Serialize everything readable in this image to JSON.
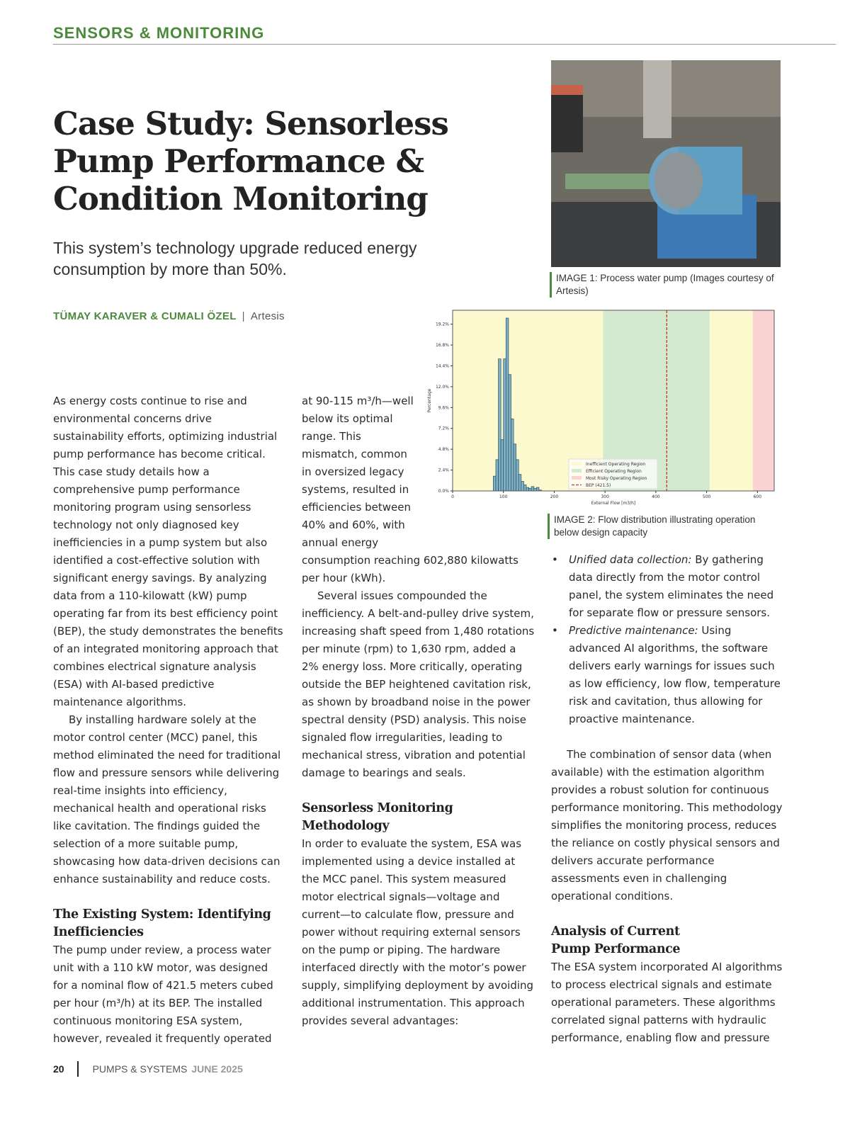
{
  "header": {
    "section": "SENSORS & MONITORING"
  },
  "article": {
    "title": "Case Study: Sensorless Pump Performance & Condition Monitoring",
    "subtitle": "This system’s technology upgrade reduced energy consumption by more than 50%.",
    "authors": "TÜMAY KARAVER & CUMALI ÖZEL",
    "separator": "|",
    "organization": "Artesis"
  },
  "image1": {
    "caption": "IMAGE 1: Process water pump (Images courtesy of Artesis)"
  },
  "image2": {
    "caption": "IMAGE 2: Flow distribution illustrating operation below design capacity"
  },
  "col1": {
    "p1": "As energy costs continue to rise and environmental concerns drive sustainability efforts, optimizing industrial pump performance has become critical. This case study details how a comprehensive pump performance monitoring program using sensorless technology not only diagnosed key inefficiencies in a pump system but also identified a cost-effective solution with significant energy savings. By analyzing data from a 110-kilowatt (kW) pump operating far from its best efficiency point (BEP), the study demonstrates the benefits of an integrated monitoring approach that combines electrical signature analysis (ESA) with AI-based predictive maintenance algorithms.",
    "p2": "By installing hardware solely at the motor control center (MCC) panel, this method eliminated the need for traditional flow and pressure sensors while delivering real-time insights into efficiency, mechanical health and operational risks like cavitation. The findings guided the selection of a more suitable pump, showcasing how data-driven decisions can enhance sustainability and reduce costs.",
    "h1": "The Existing System: Identifying Inefficiencies",
    "p3": "The pump under review, a process water unit with a 110 kW motor, was designed for a nominal flow of 421.5 meters cubed per hour (m³/h) at its BEP. The installed continuous monitoring ESA system, however, revealed it frequently operated"
  },
  "col2": {
    "p1": "at 90-115 m³/h—well below its optimal range. This mismatch, common in oversized legacy systems, resulted in efficiencies between 40% and 60%, with annual energy consumption reaching 602,880 kilowatts per hour (kWh).",
    "p2": "Several issues compounded the inefficiency. A belt-and-pulley drive system, increasing shaft speed from 1,480 rotations per minute (rpm) to 1,630 rpm, added a 2% energy loss. More critically, operating outside the BEP heightened cavitation risk, as shown by broadband noise in the power spectral density (PSD) analysis. This noise signaled flow irregularities, leading to mechanical stress, vibration and potential damage to bearings and seals.",
    "h1": "Sensorless Monitoring Methodology",
    "p3": "In order to evaluate the system, ESA was implemented using a device installed at the MCC panel. This system measured motor electrical signals—voltage and current—to calculate flow, pressure and power without requiring external sensors on the pump or piping. The hardware interfaced directly with the motor’s power supply, simplifying deployment by avoiding additional instrumentation. This approach provides several advantages:"
  },
  "col3": {
    "bullets": [
      {
        "term": "Unified data collection:",
        "text": " By gathering data directly from the motor control panel, the system eliminates the need for separate flow or pressure sensors."
      },
      {
        "term": "Predictive maintenance:",
        "text": " Using advanced AI algorithms, the software delivers early warnings for issues such as low efficiency, low flow, temperature risk and cavitation, thus allowing for proactive maintenance."
      }
    ],
    "p1": "The combination of sensor data (when available) with the estimation algorithm provides a robust solution for continuous performance monitoring. This methodology simplifies the monitoring process, reduces the reliance on costly physical sensors and delivers accurate performance assessments even in challenging operational conditions.",
    "h1": "Analysis of Current Pump Performance",
    "p2": "The ESA system incorporated AI algorithms to process electrical signals and estimate operational parameters. These algorithms correlated signal patterns with hydraulic performance, enabling flow and pressure"
  },
  "footer": {
    "page": "20",
    "publication": "PUMPS & SYSTEMS",
    "issue": "JUNE 2025"
  },
  "chart_data": {
    "type": "bar",
    "xlabel": "External Flow [m3/h]",
    "ylabel": "Percentage",
    "xlim": [
      0,
      633
    ],
    "ylim": [
      0,
      20.8
    ],
    "xticks": [
      "0",
      "100",
      "200",
      "300",
      "400",
      "500",
      "600"
    ],
    "yticks": [
      "0.0%",
      "2.4%",
      "4.8%",
      "7.2%",
      "9.6%",
      "12.0%",
      "14.4%",
      "16.8%",
      "19.2%"
    ],
    "bin_width": 5,
    "bins_start": [
      80,
      85,
      90,
      95,
      100,
      105,
      110,
      115,
      120,
      125,
      130,
      135,
      140,
      145,
      150,
      155,
      160,
      165,
      170
    ],
    "values": [
      1.7,
      3.6,
      15.2,
      5.9,
      15.2,
      19.9,
      13.4,
      8.3,
      5.4,
      3.6,
      1.9,
      1.1,
      0.7,
      0.4,
      0.3,
      0.5,
      0.3,
      0.4,
      0.1
    ],
    "regions": [
      {
        "name": "Inefficient Operating Region",
        "from": 0,
        "to": 296,
        "color": "#fdf9cf"
      },
      {
        "name": "Efficient Operating Region",
        "from": 296,
        "to": 506,
        "color": "#d3ead0"
      },
      {
        "name": "Inefficient Operating Region",
        "from": 506,
        "to": 591,
        "color": "#fdf9cf"
      },
      {
        "name": "Most Risky Operating Region",
        "from": 591,
        "to": 633,
        "color": "#fbd3d3"
      }
    ],
    "bep": {
      "label": "BEP (421.5)",
      "value": 421.5,
      "color": "#c0392b"
    },
    "legend": [
      "Inefficient Operating Region",
      "Efficient Operating Region",
      "Most Risky Operating Region",
      "BEP (421.5)"
    ],
    "legend_position": "lower-center",
    "bar_color": "#7fb3c8",
    "grid": false
  },
  "colors": {
    "accent": "#4a8a3a"
  }
}
